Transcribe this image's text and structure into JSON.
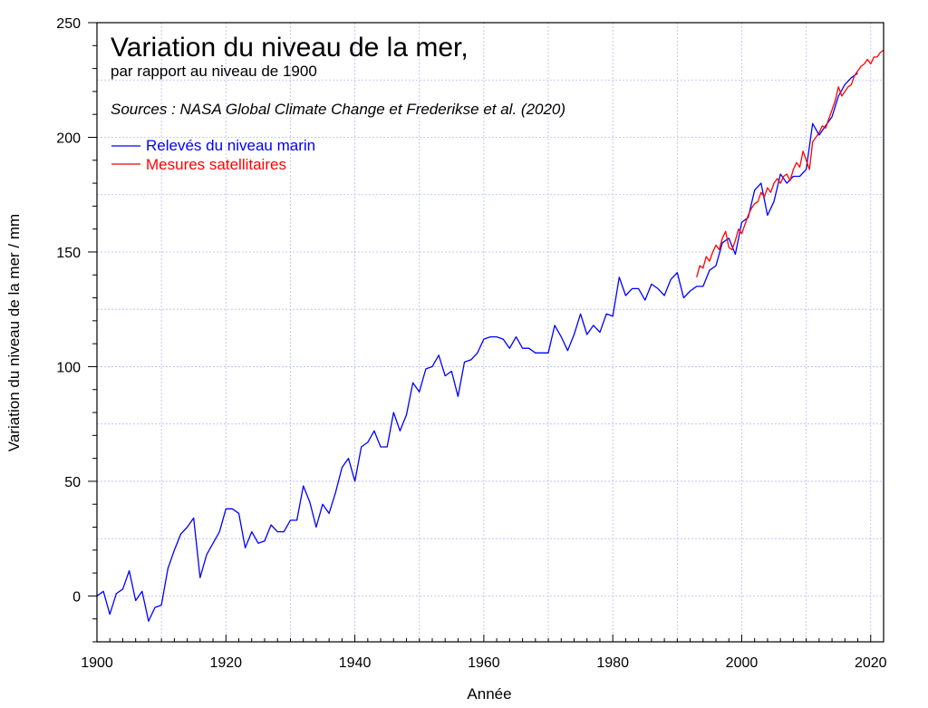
{
  "chart_data": {
    "type": "line",
    "title": "Variation du niveau de la mer,",
    "subtitle": "par rapport au niveau de 1900",
    "source": "Sources : NASA Global Climate Change et Frederikse et al. (2020)",
    "xlabel": "Année",
    "ylabel": "Variation du niveau de la mer / mm",
    "xlim": [
      1900,
      2022
    ],
    "ylim": [
      -20,
      250
    ],
    "xticks": [
      1900,
      1920,
      1940,
      1960,
      1980,
      2000,
      2020
    ],
    "yticks": [
      0,
      50,
      100,
      150,
      200,
      250
    ],
    "grid": true,
    "legend_position": "top-left",
    "colors": {
      "tide": "#0000ff",
      "satellite": "#ff0000"
    },
    "series": [
      {
        "name": "Relevés du niveau marin",
        "color": "#0000ff",
        "x": [
          1900,
          1901,
          1902,
          1903,
          1904,
          1905,
          1906,
          1907,
          1908,
          1909,
          1910,
          1911,
          1912,
          1913,
          1914,
          1915,
          1916,
          1917,
          1918,
          1919,
          1920,
          1921,
          1922,
          1923,
          1924,
          1925,
          1926,
          1927,
          1928,
          1929,
          1930,
          1931,
          1932,
          1933,
          1934,
          1935,
          1936,
          1937,
          1938,
          1939,
          1940,
          1941,
          1942,
          1943,
          1944,
          1945,
          1946,
          1947,
          1948,
          1949,
          1950,
          1951,
          1952,
          1953,
          1954,
          1955,
          1956,
          1957,
          1958,
          1959,
          1960,
          1961,
          1962,
          1963,
          1964,
          1965,
          1966,
          1967,
          1968,
          1969,
          1970,
          1971,
          1972,
          1973,
          1974,
          1975,
          1976,
          1977,
          1978,
          1979,
          1980,
          1981,
          1982,
          1983,
          1984,
          1985,
          1986,
          1987,
          1988,
          1989,
          1990,
          1991,
          1992,
          1993,
          1994,
          1995,
          1996,
          1997,
          1998,
          1999,
          2000,
          2001,
          2002,
          2003,
          2004,
          2005,
          2006,
          2007,
          2008,
          2009,
          2010,
          2011,
          2012,
          2013,
          2014,
          2015,
          2016,
          2017,
          2018
        ],
        "values": [
          0,
          2,
          -8,
          1,
          3,
          11,
          -2,
          2,
          -11,
          -5,
          -4,
          12,
          20,
          27,
          30,
          34,
          8,
          18,
          23,
          28,
          38,
          38,
          36,
          21,
          28,
          23,
          24,
          31,
          28,
          28,
          33,
          33,
          48,
          41,
          30,
          40,
          36,
          45,
          56,
          60,
          50,
          65,
          67,
          72,
          65,
          65,
          80,
          72,
          79,
          93,
          89,
          99,
          100,
          105,
          96,
          98,
          87,
          102,
          103,
          106,
          112,
          113,
          113,
          112,
          108,
          113,
          108,
          108,
          106,
          106,
          106,
          118,
          113,
          107,
          114,
          123,
          114,
          118,
          115,
          123,
          122,
          139,
          131,
          134,
          134,
          129,
          136,
          134,
          131,
          138,
          141,
          130,
          133,
          135,
          135,
          142,
          144,
          154,
          156,
          149,
          163,
          165,
          177,
          180,
          166,
          172,
          184,
          180,
          183,
          183,
          186,
          206,
          201,
          205,
          209,
          218,
          223,
          226,
          228
        ]
      },
      {
        "name": "Mesures satellitaires",
        "color": "#ff0000",
        "x": [
          1993,
          1993.5,
          1994,
          1994.5,
          1995,
          1995.5,
          1996,
          1996.5,
          1997,
          1997.5,
          1998,
          1998.5,
          1999,
          1999.5,
          2000,
          2000.5,
          2001,
          2001.5,
          2002,
          2002.5,
          2003,
          2003.5,
          2004,
          2004.5,
          2005,
          2005.5,
          2006,
          2006.5,
          2007,
          2007.5,
          2008,
          2008.5,
          2009,
          2009.5,
          2010,
          2010.5,
          2011,
          2011.5,
          2012,
          2012.5,
          2013,
          2013.5,
          2014,
          2014.5,
          2015,
          2015.5,
          2016,
          2016.5,
          2017,
          2017.5,
          2018,
          2018.5,
          2019,
          2019.5,
          2020,
          2020.5,
          2021,
          2021.5,
          2022
        ],
        "values": [
          139,
          144,
          143,
          148,
          146,
          150,
          153,
          151,
          156,
          159,
          152,
          151,
          155,
          160,
          158,
          162,
          166,
          169,
          171,
          172,
          176,
          174,
          178,
          176,
          180,
          182,
          180,
          183,
          184,
          181,
          186,
          189,
          187,
          194,
          190,
          186,
          198,
          200,
          202,
          205,
          204,
          208,
          212,
          216,
          222,
          218,
          220,
          222,
          223,
          227,
          229,
          231,
          232,
          234,
          232,
          235,
          235,
          237,
          238
        ]
      }
    ]
  }
}
